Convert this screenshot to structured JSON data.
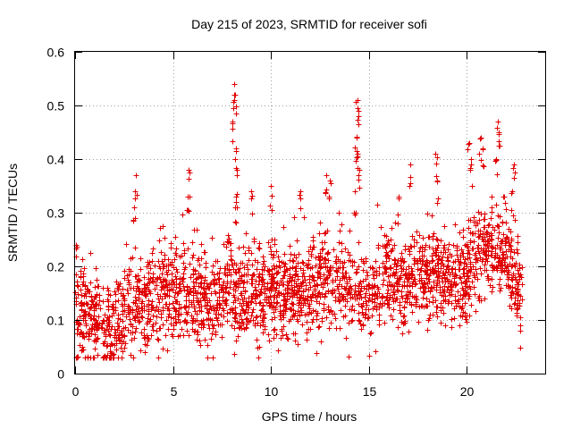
{
  "chart_data": {
    "type": "scatter",
    "title": "Day 215 of 2023, SRMTID for receiver sofi",
    "xlabel": "GPS time / hours",
    "ylabel": "SRMTID / TECUs",
    "xlim": [
      0,
      24
    ],
    "ylim": [
      0,
      0.6
    ],
    "xticks": [
      "0",
      "5",
      "10",
      "15",
      "20"
    ],
    "yticks": [
      "0",
      "0.1",
      "0.2",
      "0.3",
      "0.4",
      "0.5",
      "0.6"
    ],
    "grid": true,
    "marker": "+",
    "color": "#e00000",
    "series": [
      {
        "name": "SRMTID",
        "trend": [
          {
            "x": 0.0,
            "y": 0.11
          },
          {
            "x": 1.0,
            "y": 0.1
          },
          {
            "x": 2.0,
            "y": 0.085
          },
          {
            "x": 3.0,
            "y": 0.13
          },
          {
            "x": 4.0,
            "y": 0.14
          },
          {
            "x": 5.0,
            "y": 0.15
          },
          {
            "x": 6.0,
            "y": 0.15
          },
          {
            "x": 7.0,
            "y": 0.13
          },
          {
            "x": 8.0,
            "y": 0.16
          },
          {
            "x": 9.0,
            "y": 0.14
          },
          {
            "x": 10.0,
            "y": 0.15
          },
          {
            "x": 11.0,
            "y": 0.15
          },
          {
            "x": 12.0,
            "y": 0.16
          },
          {
            "x": 13.0,
            "y": 0.17
          },
          {
            "x": 14.0,
            "y": 0.16
          },
          {
            "x": 15.0,
            "y": 0.15
          },
          {
            "x": 16.0,
            "y": 0.18
          },
          {
            "x": 17.0,
            "y": 0.17
          },
          {
            "x": 18.0,
            "y": 0.19
          },
          {
            "x": 19.0,
            "y": 0.17
          },
          {
            "x": 20.0,
            "y": 0.18
          },
          {
            "x": 21.0,
            "y": 0.23
          },
          {
            "x": 22.0,
            "y": 0.22
          },
          {
            "x": 22.8,
            "y": 0.14
          }
        ],
        "spikes": [
          {
            "x": 0.05,
            "y": 0.24
          },
          {
            "x": 3.1,
            "y": 0.37
          },
          {
            "x": 3.0,
            "y": 0.31
          },
          {
            "x": 5.8,
            "y": 0.38
          },
          {
            "x": 5.75,
            "y": 0.33
          },
          {
            "x": 8.1,
            "y": 0.54
          },
          {
            "x": 8.15,
            "y": 0.52
          },
          {
            "x": 8.05,
            "y": 0.47
          },
          {
            "x": 8.2,
            "y": 0.42
          },
          {
            "x": 8.25,
            "y": 0.38
          },
          {
            "x": 8.2,
            "y": 0.32
          },
          {
            "x": 9.0,
            "y": 0.34
          },
          {
            "x": 10.0,
            "y": 0.35
          },
          {
            "x": 11.5,
            "y": 0.34
          },
          {
            "x": 12.8,
            "y": 0.37
          },
          {
            "x": 13.0,
            "y": 0.36
          },
          {
            "x": 14.4,
            "y": 0.51
          },
          {
            "x": 14.45,
            "y": 0.49
          },
          {
            "x": 14.35,
            "y": 0.44
          },
          {
            "x": 14.4,
            "y": 0.41
          },
          {
            "x": 14.5,
            "y": 0.38
          },
          {
            "x": 14.3,
            "y": 0.34
          },
          {
            "x": 16.5,
            "y": 0.33
          },
          {
            "x": 17.1,
            "y": 0.39
          },
          {
            "x": 18.4,
            "y": 0.41
          },
          {
            "x": 18.5,
            "y": 0.36
          },
          {
            "x": 20.1,
            "y": 0.43
          },
          {
            "x": 20.2,
            "y": 0.4
          },
          {
            "x": 20.7,
            "y": 0.44
          },
          {
            "x": 20.8,
            "y": 0.42
          },
          {
            "x": 21.6,
            "y": 0.47
          },
          {
            "x": 21.65,
            "y": 0.45
          },
          {
            "x": 21.5,
            "y": 0.4
          },
          {
            "x": 22.4,
            "y": 0.39
          },
          {
            "x": 22.3,
            "y": 0.34
          }
        ]
      }
    ]
  }
}
